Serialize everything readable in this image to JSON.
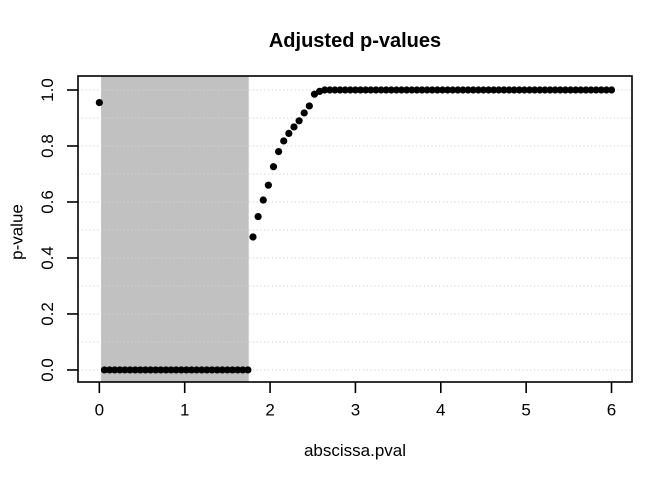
{
  "chart_data": {
    "type": "scatter",
    "title": "Adjusted p-values",
    "xlabel": "abscissa.pval",
    "ylabel": "p-value",
    "xlim": [
      -0.25,
      6.24
    ],
    "ylim": [
      -0.043,
      1.05
    ],
    "x_ticks": [
      0,
      1,
      2,
      3,
      4,
      5,
      6
    ],
    "x_tick_labels": [
      "0",
      "1",
      "2",
      "3",
      "4",
      "5",
      "6"
    ],
    "y_ticks": [
      0,
      0.2,
      0.4,
      0.6,
      0.8,
      1
    ],
    "y_tick_labels": [
      "0.0",
      "0.2",
      "0.4",
      "0.6",
      "0.8",
      "1.0"
    ],
    "grid": {
      "y_values": [
        0,
        0.1,
        0.2,
        0.3,
        0.4,
        0.5,
        0.6,
        0.7,
        0.8,
        0.9,
        1
      ],
      "vertical_lines": false,
      "color": "#d3d3d3",
      "line_style": "dotted"
    },
    "legend": null,
    "shaded_region": {
      "x_from": 0.02,
      "x_to": 1.75,
      "color": "#c1c1c1"
    },
    "frame_color": "#000000",
    "series": [
      {
        "name": "adjusted-p-values",
        "marker": "filled-circle",
        "color": "#000000",
        "marker_diameter_px": 7.2,
        "x_start": 0,
        "x_step": 0.06,
        "y": [
          0.955,
          0,
          0,
          0,
          0,
          0,
          0,
          0,
          0,
          0,
          0,
          0,
          0,
          0,
          0,
          0,
          0,
          0,
          0,
          0,
          0,
          0,
          0,
          0,
          0,
          0,
          0,
          0,
          0,
          0,
          0.475,
          0.548,
          0.607,
          0.66,
          0.726,
          0.78,
          0.818,
          0.845,
          0.868,
          0.89,
          0.918,
          0.943,
          0.985,
          0.995,
          1,
          1,
          1,
          1,
          1,
          1,
          1,
          1,
          1,
          1,
          1,
          1,
          1,
          1,
          1,
          1,
          1,
          1,
          1,
          1,
          1,
          1,
          1,
          1,
          1,
          1,
          1,
          1,
          1,
          1,
          1,
          1,
          1,
          1,
          1,
          1,
          1,
          1,
          1,
          1,
          1,
          1,
          1,
          1,
          1,
          1,
          1,
          1,
          1,
          1,
          1,
          1,
          1,
          1,
          1,
          1,
          1
        ]
      }
    ]
  }
}
